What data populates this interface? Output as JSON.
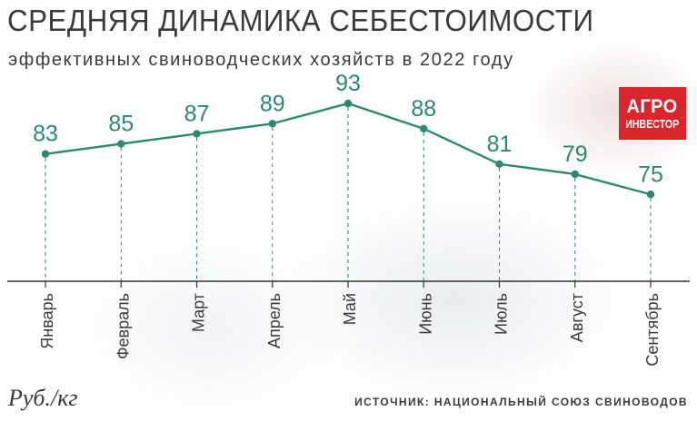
{
  "header": {
    "title": "СРЕДНЯЯ ДИНАМИКА СЕБЕСТОИМОСТИ",
    "subtitle": "эффективных свиноводческих хозяйств в 2022 году"
  },
  "logo": {
    "line1": "АГРО",
    "line2": "ИНВЕСТОР"
  },
  "footer": {
    "unit": "Руб./кг",
    "source": "ИСТОЧНИК: НАЦИОНАЛЬНЫЙ СОЮЗ СВИНОВОДОВ"
  },
  "colors": {
    "line": "#2b8a6e",
    "label": "#2b8a6e",
    "axis": "#333333",
    "text": "#3a3a3a",
    "logo_bg": "#d8262c"
  },
  "chart_data": {
    "type": "line",
    "title": "СРЕДНЯЯ ДИНАМИКА СЕБЕСТОИМОСТИ",
    "subtitle": "эффективных свиноводческих хозяйств в 2022 году",
    "ylabel": "Руб./кг",
    "categories": [
      "Январь",
      "Февраль",
      "Март",
      "Апрель",
      "Май",
      "Июнь",
      "Июль",
      "Август",
      "Сентябрь"
    ],
    "values": [
      83,
      85,
      87,
      89,
      93,
      88,
      81,
      79,
      75
    ],
    "data_labels": [
      "83",
      "85",
      "87",
      "89",
      "93",
      "88",
      "81",
      "79",
      "75"
    ],
    "ylim": [
      60,
      100
    ],
    "grid": false,
    "drop_lines": "dashed"
  }
}
